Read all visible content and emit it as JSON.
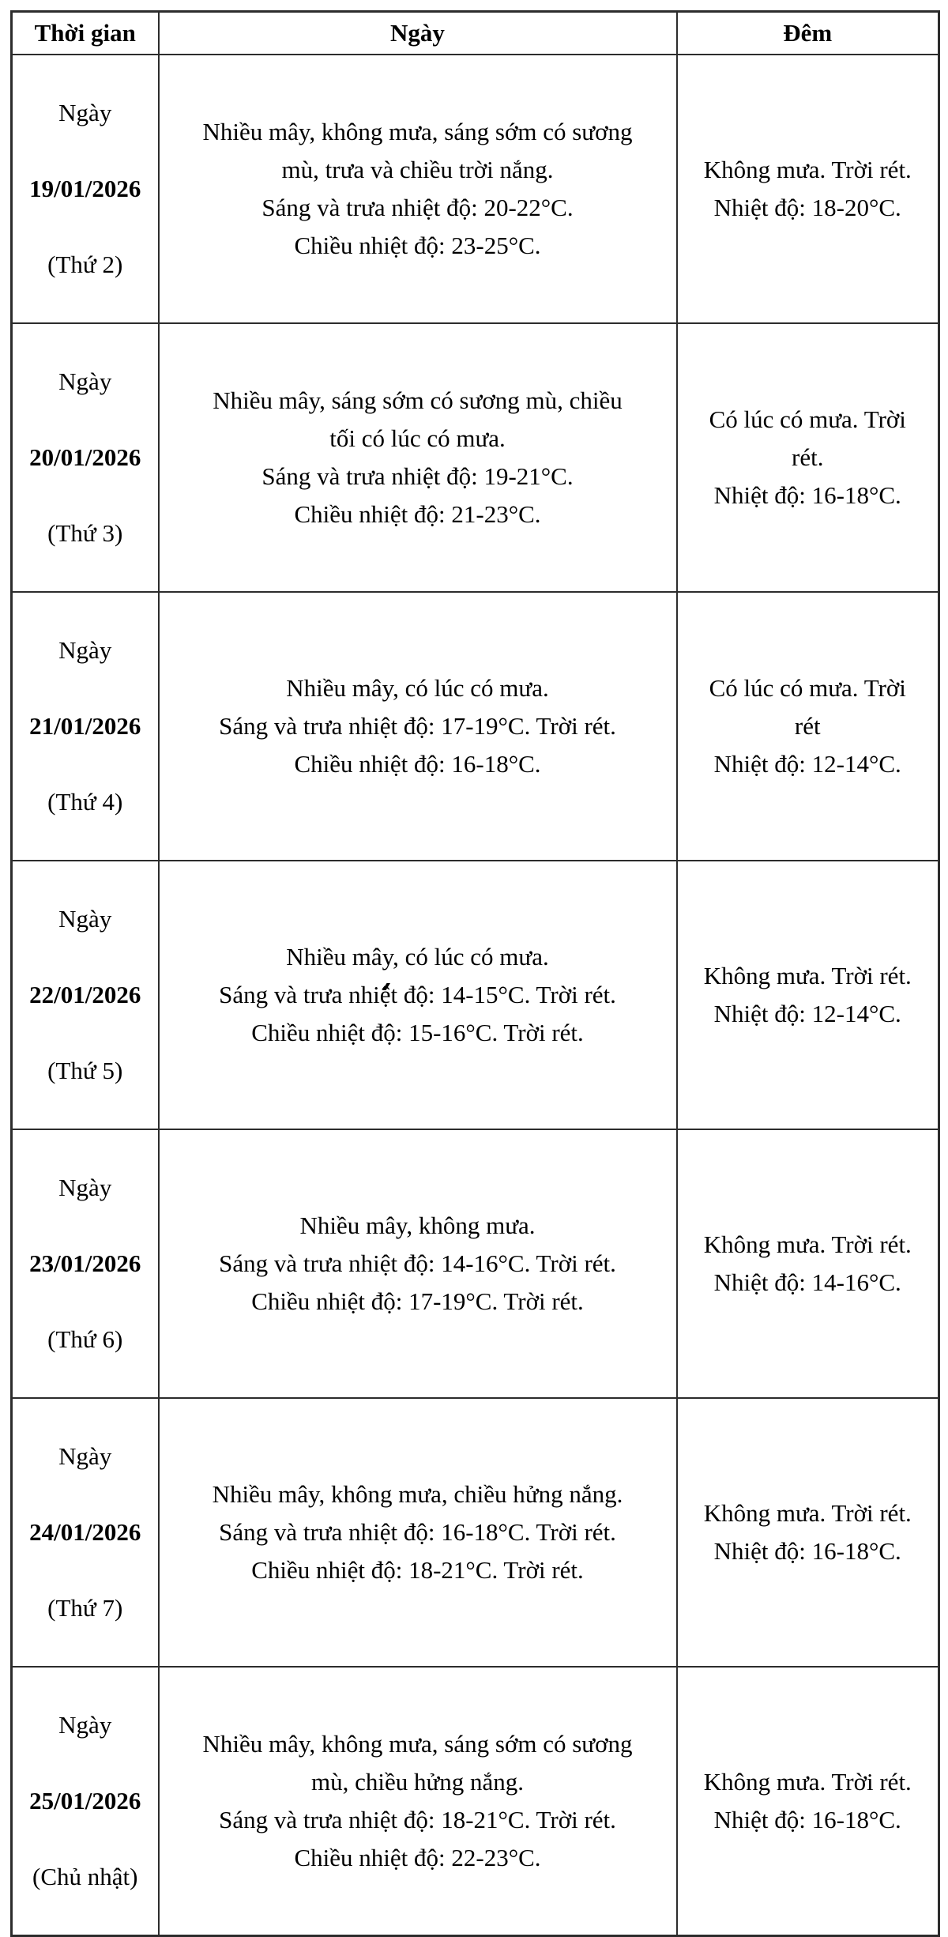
{
  "colors": {
    "background": "#ffffff",
    "text": "#000000",
    "border": "#2c2c2c"
  },
  "table": {
    "headers": {
      "time": "Thời gian",
      "day": "Ngày",
      "night": "Đêm"
    },
    "rows": [
      {
        "time": {
          "prefix": "Ngày",
          "date": "19/01/2026",
          "weekday": "(Thứ 2)"
        },
        "day": [
          "Nhiều mây, không mưa, sáng sớm có sương",
          "mù, trưa và chiều trời nắng.",
          "Sáng và trưa nhiệt độ: 20-22°C.",
          "Chiều nhiệt độ: 23-25°C."
        ],
        "night": [
          "Không mưa. Trời rét.",
          "Nhiệt độ: 18-20°C."
        ]
      },
      {
        "time": {
          "prefix": "Ngày",
          "date": "20/01/2026",
          "weekday": "(Thứ 3)"
        },
        "day": [
          "Nhiều mây, sáng sớm có sương mù, chiều",
          "tối có lúc có mưa.",
          "Sáng và trưa nhiệt độ: 19-21°C.",
          "Chiều nhiệt độ: 21-23°C."
        ],
        "night": [
          "Có lúc có mưa. Trời",
          "rét.",
          "Nhiệt độ: 16-18°C."
        ]
      },
      {
        "time": {
          "prefix": "Ngày",
          "date": "21/01/2026",
          "weekday": "(Thứ 4)"
        },
        "day": [
          "Nhiều mây, có lúc có mưa.",
          "Sáng và trưa nhiệt độ: 17-19°C. Trời rét.",
          "Chiều nhiệt độ: 16-18°C."
        ],
        "night": [
          "Có lúc có mưa. Trời",
          "rét",
          "Nhiệt độ: 12-14°C."
        ]
      },
      {
        "time": {
          "prefix": "Ngày",
          "date": "22/01/2026",
          "weekday": "(Thứ 5)"
        },
        "day": [
          "Nhiều mây, có lúc có mưa.",
          "Sáng và trưa nhiệt độ: 14-15°C. Trời rét.",
          "Chiều nhiệt độ: 15-16°C. Trời rét."
        ],
        "night": [
          "Không mưa. Trời rét.",
          "Nhiệt độ: 12-14°C."
        ]
      },
      {
        "time": {
          "prefix": "Ngày",
          "date": "23/01/2026",
          "weekday": "(Thứ 6)"
        },
        "day": [
          "Nhiều mây, không mưa.",
          "Sáng và trưa nhiệt độ: 14-16°C. Trời rét.",
          "Chiều nhiệt độ: 17-19°C. Trời rét."
        ],
        "night": [
          "Không mưa. Trời rét.",
          "Nhiệt độ: 14-16°C."
        ]
      },
      {
        "time": {
          "prefix": "Ngày",
          "date": "24/01/2026",
          "weekday": "(Thứ 7)"
        },
        "day": [
          "Nhiều mây, không mưa, chiều hửng nắng.",
          "Sáng và trưa nhiệt độ: 16-18°C. Trời rét.",
          "Chiều nhiệt độ: 18-21°C. Trời rét."
        ],
        "night": [
          "Không mưa. Trời rét.",
          "Nhiệt độ: 16-18°C."
        ]
      },
      {
        "time": {
          "prefix": "Ngày",
          "date": "25/01/2026",
          "weekday": "(Chủ nhật)"
        },
        "day": [
          "Nhiều mây, không mưa, sáng sớm có sương",
          "mù, chiều hửng nắng.",
          "Sáng và trưa nhiệt độ: 18-21°C. Trời rét.",
          "Chiều nhiệt độ: 22-23°C."
        ],
        "night": [
          "Không mưa. Trời rét.",
          "Nhiệt độ: 16-18°C."
        ]
      }
    ]
  }
}
